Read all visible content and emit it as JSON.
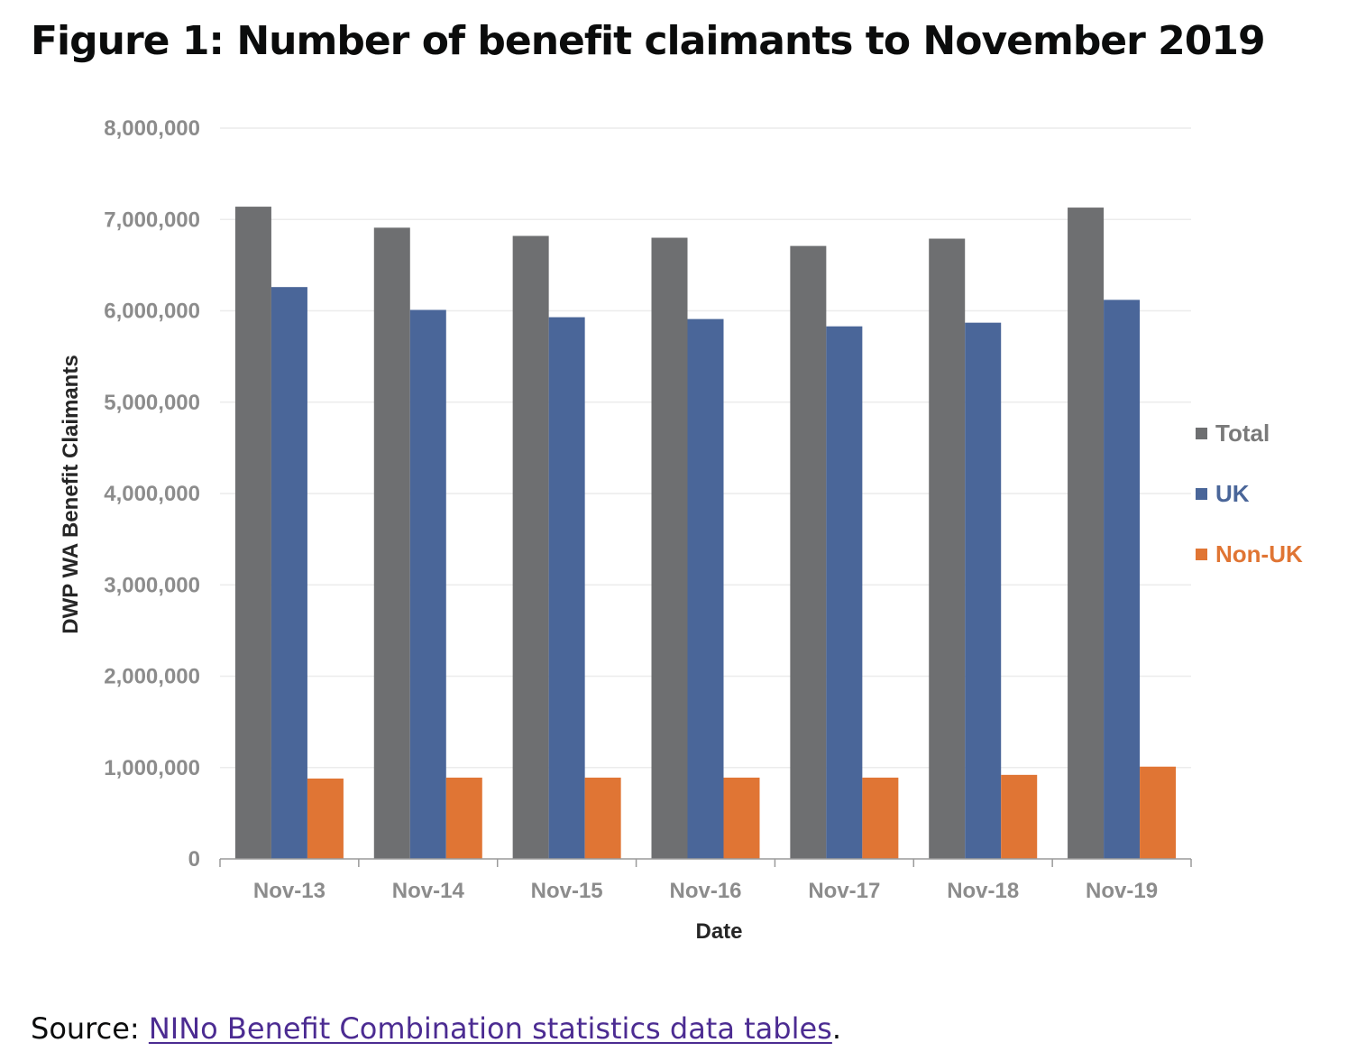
{
  "figure": {
    "title": "Figure 1: Number of benefit claimants to November 2019"
  },
  "source": {
    "prefix": "Source: ",
    "link_text": "NINo Benefit Combination statistics data tables",
    "suffix": "."
  },
  "colors": {
    "total": "#6e6f71",
    "uk": "#4a6699",
    "non_uk": "#e07534",
    "gridline": "#ececec",
    "axis": "#9a9a9a",
    "link": "#4c2c92"
  },
  "chart_data": {
    "type": "bar",
    "title": "",
    "xlabel": "Date",
    "ylabel": "DWP WA Benefit Claimants",
    "ylim": [
      0,
      8000000
    ],
    "ytick_step": 1000000,
    "ytick_labels": [
      "0",
      "1,000,000",
      "2,000,000",
      "3,000,000",
      "4,000,000",
      "5,000,000",
      "6,000,000",
      "7,000,000",
      "8,000,000"
    ],
    "grid": true,
    "legend_position": "right",
    "categories": [
      "Nov-13",
      "Nov-14",
      "Nov-15",
      "Nov-16",
      "Nov-17",
      "Nov-18",
      "Nov-19"
    ],
    "series": [
      {
        "name": "Total",
        "color": "#6e6f71",
        "values": [
          7140000,
          6910000,
          6820000,
          6800000,
          6710000,
          6790000,
          7130000
        ]
      },
      {
        "name": "UK",
        "color": "#4a6699",
        "values": [
          6260000,
          6010000,
          5930000,
          5910000,
          5830000,
          5870000,
          6120000
        ]
      },
      {
        "name": "Non-UK",
        "color": "#e07534",
        "values": [
          880000,
          890000,
          890000,
          890000,
          890000,
          920000,
          1010000
        ]
      }
    ]
  }
}
